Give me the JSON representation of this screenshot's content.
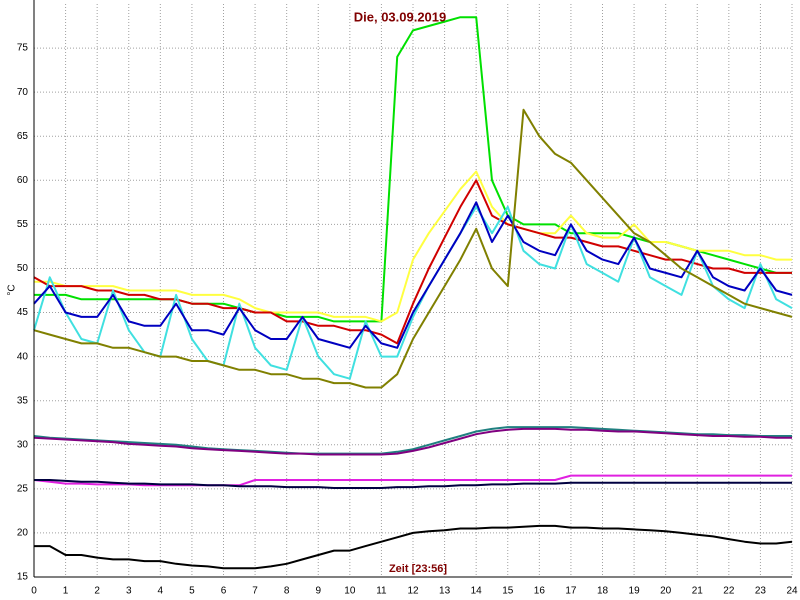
{
  "chart_data": {
    "type": "line",
    "title": "Die, 03.09.2019",
    "x_label": "Zeit [23:56]",
    "y_label": "°C",
    "x": [
      0,
      0.5,
      1,
      1.5,
      2,
      2.5,
      3,
      3.5,
      4,
      4.5,
      5,
      5.5,
      6,
      6.5,
      7,
      7.5,
      8,
      8.5,
      9,
      9.5,
      10,
      10.5,
      11,
      11.5,
      12,
      12.5,
      13,
      13.5,
      14,
      14.5,
      15,
      15.5,
      16,
      16.5,
      17,
      17.5,
      18,
      18.5,
      19,
      19.5,
      20,
      20.5,
      21,
      21.5,
      22,
      22.5,
      23,
      23.5,
      24
    ],
    "xlim": [
      0,
      24
    ],
    "xticks": [
      0,
      1,
      2,
      3,
      4,
      5,
      6,
      7,
      8,
      9,
      10,
      11,
      12,
      13,
      14,
      15,
      16,
      17,
      18,
      19,
      20,
      21,
      22,
      23,
      24
    ],
    "ylim": [
      15,
      80
    ],
    "yticks": [
      15,
      20,
      25,
      30,
      35,
      40,
      45,
      50,
      55,
      60,
      65,
      70,
      75
    ],
    "grid": true,
    "series": [
      {
        "color": "#00e000",
        "values": [
          47,
          47,
          47,
          46.5,
          46.5,
          46.5,
          46.5,
          46.5,
          46.5,
          46.5,
          46,
          46,
          46,
          45.5,
          45,
          45,
          44.5,
          44.5,
          44.5,
          44,
          44,
          44,
          44,
          74,
          77,
          77.5,
          78,
          78.5,
          78.5,
          60,
          56,
          55,
          55,
          55,
          54,
          54,
          54,
          54,
          53.5,
          53,
          53,
          52.5,
          52,
          51.5,
          51,
          50.5,
          50,
          49.5,
          49.5
        ]
      },
      {
        "color": "#ffff40",
        "values": [
          48.5,
          48.5,
          48,
          48,
          48,
          48,
          47.5,
          47.5,
          47.5,
          47.5,
          47,
          47,
          47,
          46.5,
          45.5,
          45,
          45,
          45,
          45,
          44.5,
          44.5,
          44.5,
          44,
          45,
          51,
          54,
          56.5,
          59,
          61,
          57,
          55,
          54.5,
          54,
          54,
          56,
          54,
          53.5,
          53.5,
          55,
          53,
          53,
          52.5,
          52,
          52,
          52,
          51.5,
          51.5,
          51,
          51
        ]
      },
      {
        "color": "#d00000",
        "values": [
          49,
          48,
          48,
          48,
          47.5,
          47.5,
          47,
          47,
          46.5,
          46.5,
          46,
          46,
          45.5,
          45.5,
          45,
          45,
          44,
          44,
          43.5,
          43.5,
          43,
          43,
          42.5,
          41.5,
          46,
          50,
          53.5,
          57,
          60,
          56,
          55,
          54.5,
          54,
          53.5,
          53.5,
          53,
          52.5,
          52.5,
          52,
          51.5,
          51,
          51,
          50.5,
          50,
          50,
          49.5,
          49.5,
          49.5,
          49.5
        ]
      },
      {
        "color": "#40e0e0",
        "values": [
          43,
          49,
          45,
          42,
          41.5,
          47.5,
          43,
          40.5,
          40,
          47,
          42,
          39.5,
          39,
          46,
          41,
          39,
          38.5,
          44.5,
          40,
          38,
          37.5,
          44,
          40,
          40,
          44.5,
          48,
          51,
          54,
          57,
          54,
          57,
          52,
          50.5,
          50,
          55,
          50.5,
          49.5,
          48.5,
          53.5,
          49,
          48,
          47,
          52,
          48,
          46.5,
          45.5,
          50.5,
          46.5,
          45.5
        ]
      },
      {
        "color": "#0000c0",
        "values": [
          46,
          48,
          45,
          44.5,
          44.5,
          47,
          44,
          43.5,
          43.5,
          46,
          43,
          43,
          42.5,
          45.5,
          43,
          42,
          42,
          44.5,
          42,
          41.5,
          41,
          43.5,
          41.5,
          41,
          45,
          48,
          51,
          54,
          57.5,
          53,
          56,
          53,
          52,
          51.5,
          55,
          52,
          51,
          50.5,
          53.5,
          50,
          49.5,
          49,
          52,
          49,
          48,
          47.5,
          50,
          47.5,
          47
        ]
      },
      {
        "color": "#808000",
        "values": [
          43,
          42.5,
          42,
          41.5,
          41.5,
          41,
          41,
          40.5,
          40,
          40,
          39.5,
          39.5,
          39,
          38.5,
          38.5,
          38,
          38,
          37.5,
          37.5,
          37,
          37,
          36.5,
          36.5,
          38,
          42,
          45,
          48,
          51,
          54.5,
          50,
          48,
          68,
          65,
          63,
          62,
          60,
          58,
          56,
          54,
          53,
          51.5,
          50,
          49,
          48,
          47,
          46,
          45.5,
          45,
          44.5
        ]
      },
      {
        "color": "#208080",
        "values": [
          31,
          30.8,
          30.7,
          30.6,
          30.5,
          30.4,
          30.3,
          30.2,
          30.1,
          30,
          29.8,
          29.6,
          29.5,
          29.4,
          29.3,
          29.2,
          29.1,
          29,
          29,
          29,
          29,
          29,
          29,
          29.2,
          29.5,
          30,
          30.5,
          31,
          31.5,
          31.8,
          32,
          32,
          32,
          32,
          32,
          31.9,
          31.8,
          31.7,
          31.6,
          31.5,
          31.4,
          31.3,
          31.2,
          31.2,
          31.1,
          31.1,
          31,
          31,
          31
        ]
      },
      {
        "color": "#800080",
        "values": [
          30.8,
          30.7,
          30.6,
          30.5,
          30.4,
          30.3,
          30.1,
          30,
          29.9,
          29.8,
          29.6,
          29.5,
          29.4,
          29.3,
          29.2,
          29.1,
          29,
          29,
          28.9,
          28.9,
          28.9,
          28.9,
          28.9,
          29,
          29.3,
          29.7,
          30.2,
          30.7,
          31.2,
          31.5,
          31.7,
          31.8,
          31.8,
          31.8,
          31.7,
          31.7,
          31.6,
          31.5,
          31.5,
          31.4,
          31.3,
          31.2,
          31.1,
          31,
          31,
          30.9,
          30.9,
          30.8,
          30.8
        ]
      },
      {
        "color": "#e020e0",
        "values": [
          26,
          25.8,
          25.6,
          25.6,
          25.5,
          25.5,
          25.5,
          25.4,
          25.4,
          25.4,
          25.4,
          25.4,
          25.4,
          25.4,
          26,
          26,
          26,
          26,
          26,
          26,
          26,
          26,
          26,
          26,
          26,
          26,
          26,
          26,
          26,
          26,
          26,
          26,
          26,
          26,
          26.5,
          26.5,
          26.5,
          26.5,
          26.5,
          26.5,
          26.5,
          26.5,
          26.5,
          26.5,
          26.5,
          26.5,
          26.5,
          26.5,
          26.5
        ]
      },
      {
        "color": "#000040",
        "values": [
          26,
          26,
          25.9,
          25.8,
          25.8,
          25.7,
          25.6,
          25.6,
          25.5,
          25.5,
          25.5,
          25.4,
          25.4,
          25.3,
          25.3,
          25.3,
          25.2,
          25.2,
          25.2,
          25.1,
          25.1,
          25.1,
          25.1,
          25.2,
          25.2,
          25.3,
          25.3,
          25.4,
          25.4,
          25.5,
          25.5,
          25.6,
          25.6,
          25.6,
          25.7,
          25.7,
          25.7,
          25.7,
          25.7,
          25.7,
          25.7,
          25.7,
          25.7,
          25.7,
          25.7,
          25.7,
          25.7,
          25.7,
          25.7
        ]
      },
      {
        "color": "#000000",
        "values": [
          18.5,
          18.5,
          17.5,
          17.5,
          17.2,
          17,
          17,
          16.8,
          16.8,
          16.5,
          16.3,
          16.2,
          16,
          16,
          16,
          16.2,
          16.5,
          17,
          17.5,
          18,
          18,
          18.5,
          19,
          19.5,
          20,
          20.2,
          20.3,
          20.5,
          20.5,
          20.6,
          20.6,
          20.7,
          20.8,
          20.8,
          20.6,
          20.6,
          20.5,
          20.5,
          20.4,
          20.3,
          20.2,
          20,
          19.8,
          19.6,
          19.3,
          19,
          18.8,
          18.8,
          19
        ]
      }
    ]
  }
}
